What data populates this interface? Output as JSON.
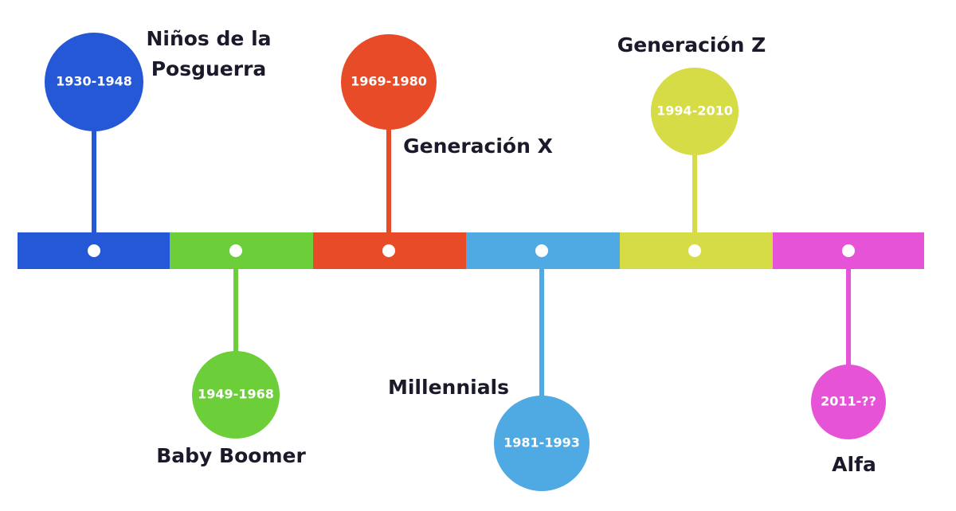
{
  "nodes": [
    {
      "label": [
        "Niños de la",
        "Posguerra"
      ],
      "years": "1930-1948",
      "color": "#2458d6"
    },
    {
      "label": [
        "Baby Boomer"
      ],
      "years": "1949-1968",
      "color": "#6ccf3a"
    },
    {
      "label": [
        "Generación X"
      ],
      "years": "1969-1980",
      "color": "#e84b27"
    },
    {
      "label": [
        "Millennials"
      ],
      "years": "1981-1993",
      "color": "#4fa9e3"
    },
    {
      "label": [
        "Generación Z"
      ],
      "years": "1994-2010",
      "color": "#d5dc45"
    },
    {
      "label": [
        "Alfa"
      ],
      "years": "2011-??",
      "color": "#e653d7"
    }
  ]
}
